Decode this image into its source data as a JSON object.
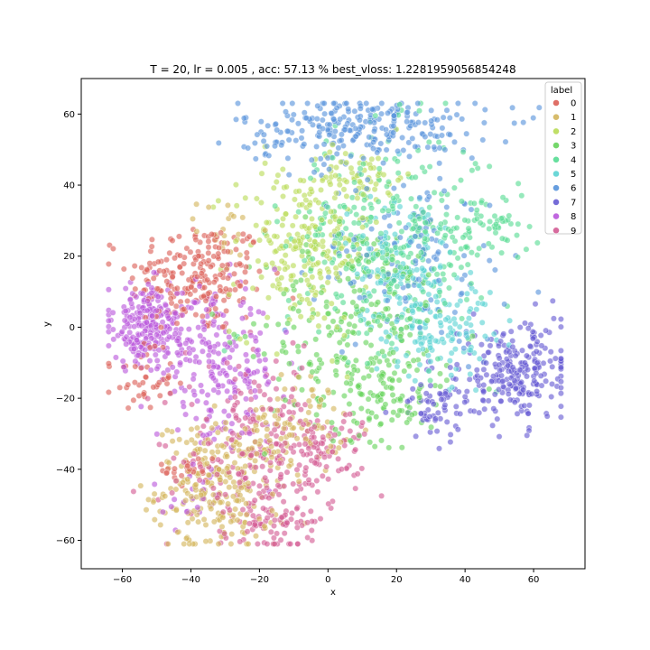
{
  "chart_data": {
    "type": "scatter",
    "title": "T = 20, lr = 0.005 , acc: 57.13 % best_vloss: 1.2281959056854248",
    "xlabel": "x",
    "ylabel": "y",
    "xlim": [
      -72,
      75
    ],
    "ylim": [
      -68,
      70
    ],
    "xticks": [
      -60,
      -40,
      -20,
      0,
      20,
      40,
      60
    ],
    "yticks": [
      -60,
      -40,
      -20,
      0,
      20,
      40,
      60
    ],
    "grid": false,
    "legend": {
      "title": "label",
      "placement": "upper right"
    },
    "series": [
      {
        "name": "0",
        "color": "#db5f57",
        "clusters": [
          {
            "cx": -38,
            "cy": 14,
            "sx": 10,
            "sy": 8,
            "n": 220
          },
          {
            "cx": -55,
            "cy": -15,
            "sx": 5,
            "sy": 4,
            "n": 40
          },
          {
            "cx": -40,
            "cy": -40,
            "sx": 4,
            "sy": 3,
            "n": 25
          }
        ]
      },
      {
        "name": "1",
        "color": "#d3b55b",
        "clusters": [
          {
            "cx": -32,
            "cy": -45,
            "sx": 9,
            "sy": 9,
            "n": 260
          },
          {
            "cx": -10,
            "cy": -28,
            "sx": 7,
            "sy": 7,
            "n": 90
          },
          {
            "cx": -30,
            "cy": 28,
            "sx": 4,
            "sy": 4,
            "n": 20
          }
        ]
      },
      {
        "name": "2",
        "color": "#b9db57",
        "clusters": [
          {
            "cx": -8,
            "cy": 22,
            "sx": 10,
            "sy": 12,
            "n": 220
          },
          {
            "cx": 10,
            "cy": 42,
            "sx": 6,
            "sy": 4,
            "n": 60
          }
        ]
      },
      {
        "name": "3",
        "color": "#66d35b",
        "clusters": [
          {
            "cx": 10,
            "cy": 0,
            "sx": 14,
            "sy": 15,
            "n": 260
          },
          {
            "cx": 15,
            "cy": -20,
            "sx": 10,
            "sy": 6,
            "n": 70
          }
        ]
      },
      {
        "name": "4",
        "color": "#57db93",
        "clusters": [
          {
            "cx": 18,
            "cy": 25,
            "sx": 15,
            "sy": 15,
            "n": 300
          },
          {
            "cx": 45,
            "cy": 28,
            "sx": 7,
            "sy": 5,
            "n": 60
          }
        ]
      },
      {
        "name": "5",
        "color": "#5bd3d3",
        "clusters": [
          {
            "cx": 30,
            "cy": 2,
            "sx": 9,
            "sy": 8,
            "n": 160
          },
          {
            "cx": 20,
            "cy": 20,
            "sx": 8,
            "sy": 10,
            "n": 90
          }
        ]
      },
      {
        "name": "6",
        "color": "#5793db",
        "clusters": [
          {
            "cx": 10,
            "cy": 56,
            "sx": 18,
            "sy": 5,
            "n": 260
          },
          {
            "cx": 25,
            "cy": 20,
            "sx": 14,
            "sy": 12,
            "n": 130
          }
        ]
      },
      {
        "name": "7",
        "color": "#665bd3",
        "clusters": [
          {
            "cx": 55,
            "cy": -13,
            "sx": 8,
            "sy": 7,
            "n": 240
          },
          {
            "cx": 32,
            "cy": -22,
            "sx": 6,
            "sy": 5,
            "n": 60
          }
        ]
      },
      {
        "name": "8",
        "color": "#b957db",
        "clusters": [
          {
            "cx": -52,
            "cy": 0,
            "sx": 7,
            "sy": 6,
            "n": 230
          },
          {
            "cx": -32,
            "cy": -12,
            "sx": 9,
            "sy": 10,
            "n": 200
          },
          {
            "cx": -40,
            "cy": -48,
            "sx": 4,
            "sy": 4,
            "n": 20
          }
        ]
      },
      {
        "name": "9",
        "color": "#d35b93",
        "clusters": [
          {
            "cx": -20,
            "cy": -35,
            "sx": 11,
            "sy": 12,
            "n": 250
          },
          {
            "cx": -15,
            "cy": -55,
            "sx": 6,
            "sy": 3,
            "n": 60
          },
          {
            "cx": 0,
            "cy": -35,
            "sx": 6,
            "sy": 6,
            "n": 70
          }
        ]
      }
    ]
  }
}
